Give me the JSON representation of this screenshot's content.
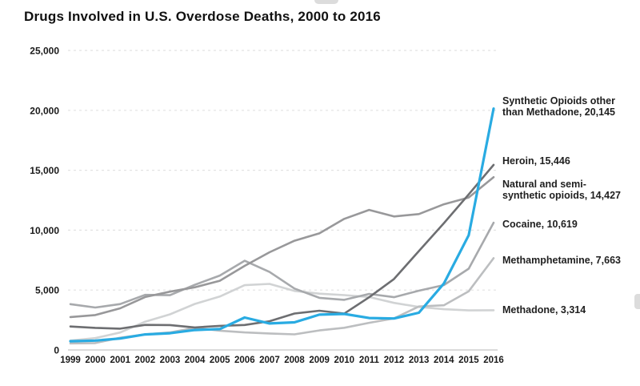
{
  "header": {
    "title": "Drugs Involved in U.S. Overdose Deaths, 2000 to 2016"
  },
  "chart_data": {
    "type": "line",
    "title": "Drugs Involved in U.S. Overdose Deaths, 2000 to 2016",
    "x": [
      1999,
      2000,
      2001,
      2002,
      2003,
      2004,
      2005,
      2006,
      2007,
      2008,
      2009,
      2010,
      2011,
      2012,
      2013,
      2014,
      2015,
      2016
    ],
    "ylim": [
      0,
      25000
    ],
    "yticks": [
      {
        "value": 0,
        "label": "0"
      },
      {
        "value": 5000,
        "label": "5,000"
      },
      {
        "value": 10000,
        "label": "10,000"
      },
      {
        "value": 15000,
        "label": "15,000"
      },
      {
        "value": 20000,
        "label": "20,000"
      },
      {
        "value": 25000,
        "label": "25,000"
      }
    ],
    "grid": {
      "style": "dashed",
      "color": "#e2e2e2",
      "baseline_color": "#cfcfcf"
    },
    "legend_position": "right-of-line-ends",
    "series": [
      {
        "name": "Synthetic Opioids other than Methadone",
        "label_lines": [
          "Synthetic Opioids other",
          "than Methadone, 20,145"
        ],
        "end_value_label": "20,145",
        "color": "#29abe2",
        "values": [
          730,
          782,
          957,
          1295,
          1400,
          1664,
          1742,
          2707,
          2213,
          2306,
          2946,
          3007,
          2666,
          2628,
          3105,
          5544,
          9580,
          20145
        ]
      },
      {
        "name": "Heroin",
        "label_lines": [
          "Heroin, 15,446"
        ],
        "end_value_label": "15,446",
        "color": "#6d6e71",
        "values": [
          1960,
          1842,
          1779,
          2089,
          2080,
          1878,
          2009,
          2088,
          2399,
          3041,
          3278,
          3036,
          4397,
          5925,
          8257,
          10574,
          12989,
          15446
        ]
      },
      {
        "name": "Natural and semi-synthetic opioids",
        "label_lines": [
          "Natural and semi-",
          "synthetic opioids, 14,427"
        ],
        "end_value_label": "14,427",
        "color": "#98989a",
        "values": [
          2749,
          2917,
          3479,
          4416,
          4867,
          5231,
          5774,
          7017,
          8158,
          9119,
          9735,
          10943,
          11693,
          11140,
          11346,
          12159,
          12727,
          14427
        ]
      },
      {
        "name": "Cocaine",
        "label_lines": [
          "Cocaine, 10,619"
        ],
        "end_value_label": "10,619",
        "color": "#a7a9ac",
        "values": [
          3822,
          3544,
          3833,
          4599,
          4570,
          5443,
          6208,
          7448,
          6512,
          5129,
          4350,
          4183,
          4681,
          4404,
          4944,
          5415,
          6784,
          10619
        ]
      },
      {
        "name": "Methamphetamine",
        "label_lines": [
          "Methamphetamine, 7,663"
        ],
        "end_value_label": "7,663",
        "color": "#bcbec0",
        "values": [
          547,
          578,
          1021,
          1302,
          1462,
          1854,
          1608,
          1462,
          1378,
          1302,
          1632,
          1854,
          2266,
          2635,
          3627,
          3728,
          4900,
          7663
        ]
      },
      {
        "name": "Methadone",
        "label_lines": [
          "Methadone, 3,314"
        ],
        "end_value_label": "3,314",
        "color": "#d1d3d4",
        "values": [
          784,
          986,
          1456,
          2360,
          2974,
          3845,
          4460,
          5406,
          5518,
          4924,
          4696,
          4577,
          4418,
          3932,
          3591,
          3400,
          3301,
          3314
        ]
      }
    ]
  }
}
